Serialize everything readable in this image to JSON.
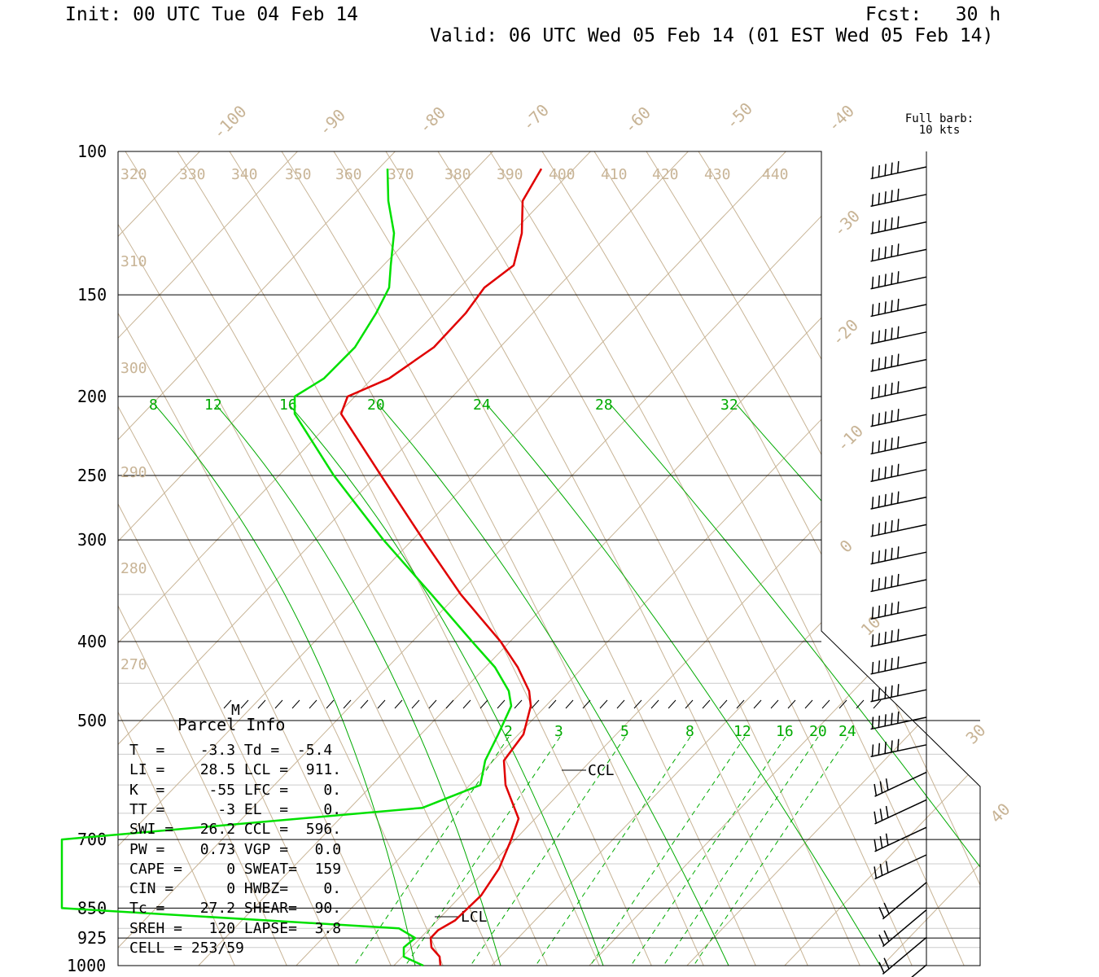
{
  "header": {
    "init": "Init: 00 UTC Tue 04 Feb 14",
    "fcst": "Fcst:   30 h",
    "valid": "Valid: 06 UTC Wed 05 Feb 14 (01 EST Wed 05 Feb 14)"
  },
  "barb_note": {
    "line1": "Full barb:",
    "line2": "10 kts"
  },
  "parcel": {
    "title": "Parcel Info",
    "rows": [
      "T  =    -3.3 Td =  -5.4",
      "LI =    28.5 LCL =  911.",
      "K  =     -55 LFC =    0.",
      "TT =      -3 EL  =    0.",
      "SWI =   26.2 CCL =  596.",
      "PW =    0.73 VGP =   0.0",
      "CAPE =     0 SWEAT=  159",
      "CIN =      0 HWBZ=    0.",
      "Tc =    27.2 SHEAR=  90.",
      "SREH =   120 LAPSE=  3.8",
      "CELL = 253/59"
    ]
  },
  "chart_data": {
    "type": "line",
    "title": "",
    "pressure_levels": [
      100,
      150,
      200,
      250,
      300,
      400,
      500,
      700,
      850,
      925,
      1000
    ],
    "pressure_labels": [
      "100",
      "150",
      "200",
      "250",
      "300",
      "400",
      "500",
      "700",
      "850",
      "925",
      "1000"
    ],
    "isotherm_labels": [
      "-100",
      "-90",
      "-80",
      "-70",
      "-60",
      "-50",
      "-40",
      "-30",
      "-20",
      "-10",
      "0",
      "10",
      "30",
      "40"
    ],
    "theta_labels": [
      "320",
      "330",
      "340",
      "350",
      "360",
      "370",
      "380",
      "390",
      "400",
      "410",
      "420",
      "430",
      "440",
      "310",
      "300",
      "290",
      "280",
      "270"
    ],
    "mixing_ratio_upper_labels": [
      "8",
      "12",
      "16",
      "20",
      "24",
      "28",
      "32"
    ],
    "mixing_ratio_lower_labels": [
      "2",
      "3",
      "5",
      "8",
      "12",
      "16",
      "20",
      "24"
    ],
    "series": [
      {
        "role": "temperature",
        "color": "#e00000",
        "points": [
          [
            105,
            665
          ],
          [
            115,
            642
          ],
          [
            126,
            641
          ],
          [
            138,
            631
          ],
          [
            147,
            595
          ],
          [
            158,
            572
          ],
          [
            174,
            533
          ],
          [
            190,
            478
          ],
          [
            200,
            427
          ],
          [
            210,
            419
          ],
          [
            250,
            468
          ],
          [
            300,
            520
          ],
          [
            350,
            566
          ],
          [
            400,
            615
          ],
          [
            430,
            636
          ],
          [
            460,
            650
          ],
          [
            480,
            652
          ],
          [
            520,
            643
          ],
          [
            560,
            619
          ],
          [
            600,
            621
          ],
          [
            660,
            637
          ],
          [
            700,
            628
          ],
          [
            760,
            613
          ],
          [
            820,
            591
          ],
          [
            880,
            559
          ],
          [
            905,
            538
          ],
          [
            925,
            529
          ],
          [
            950,
            530
          ],
          [
            975,
            540
          ],
          [
            1000,
            541
          ]
        ]
      },
      {
        "role": "dewpoint",
        "color": "#00e000",
        "points": [
          [
            105,
            476
          ],
          [
            115,
            477
          ],
          [
            126,
            484
          ],
          [
            138,
            480
          ],
          [
            147,
            478
          ],
          [
            158,
            462
          ],
          [
            174,
            436
          ],
          [
            190,
            398
          ],
          [
            200,
            362
          ],
          [
            210,
            362
          ],
          [
            250,
            410
          ],
          [
            300,
            471
          ],
          [
            350,
            530
          ],
          [
            400,
            580
          ],
          [
            430,
            608
          ],
          [
            460,
            625
          ],
          [
            480,
            628
          ],
          [
            520,
            612
          ],
          [
            560,
            596
          ],
          [
            600,
            590
          ],
          [
            640,
            519
          ],
          [
            700,
            76
          ],
          [
            850,
            76
          ],
          [
            900,
            490
          ],
          [
            925,
            510
          ],
          [
            950,
            496
          ],
          [
            975,
            496
          ],
          [
            1000,
            520
          ]
        ]
      }
    ],
    "markers": [
      "M",
      "CCL",
      "LCL"
    ],
    "wind_barbs_count": 30
  }
}
